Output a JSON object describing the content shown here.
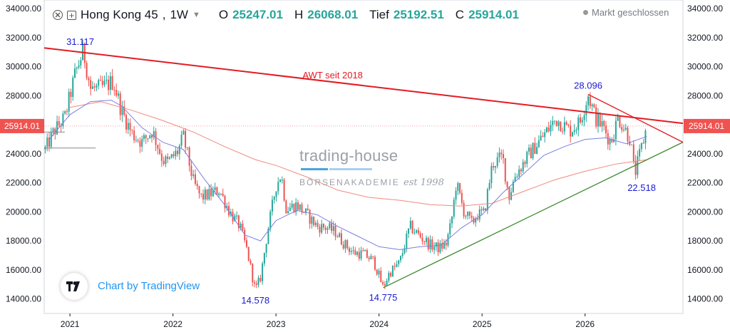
{
  "header": {
    "symbol": "Hong Kong 45",
    "interval": "1W",
    "open_label": "O",
    "open_value": "25247.01",
    "high_label": "H",
    "high_value": "26068.01",
    "low_label": "Tief",
    "low_value": "25192.51",
    "close_label": "C",
    "close_value": "25914.01",
    "status": "Markt geschlossen",
    "icons": [
      "hide-icon",
      "add-compare-icon",
      "chevron-down-icon",
      "status-dot-icon"
    ]
  },
  "watermark": {
    "line1": "trading-house",
    "line2": "BÖRSENAKADEMIE",
    "line3": "est 1998"
  },
  "branding": {
    "logo": "tradingview-logo",
    "text": "Chart by TradingView"
  },
  "colors": {
    "up": "#26a69a",
    "down": "#ef5350",
    "resistance": "#e31b23",
    "support": "#3d8b2f",
    "ma_fast": "#7b7fe0",
    "ma_slow": "#ef8a80",
    "annotation": "#1a1ad6",
    "price_tag": "#ef5350"
  },
  "chart_data": {
    "type": "candlestick",
    "y_ticks": [
      "14000.00",
      "16000.00",
      "18000.00",
      "20000.00",
      "22000.00",
      "24000.00",
      "26000.00",
      "28000.00",
      "30000.00",
      "32000.00",
      "34000.00"
    ],
    "y_tick_values": [
      14000,
      16000,
      18000,
      20000,
      22000,
      24000,
      26000,
      28000,
      30000,
      32000,
      34000
    ],
    "ylim": [
      13000,
      34600
    ],
    "x_ticks": [
      "2021",
      "2022",
      "2023",
      "2024",
      "2025",
      "2026"
    ],
    "x_tick_values": [
      2021.0,
      2022.0,
      2023.0,
      2024.0,
      2025.0,
      2026.0
    ],
    "xlim": [
      2020.75,
      2026.95
    ],
    "current_price": "25914.01",
    "current_price_value": 25914.01,
    "anchors": [
      [
        2020.76,
        24300
      ],
      [
        2020.85,
        25600
      ],
      [
        2020.95,
        26500
      ],
      [
        2021.05,
        29500
      ],
      [
        2021.13,
        31117
      ],
      [
        2021.2,
        28500
      ],
      [
        2021.3,
        28500
      ],
      [
        2021.42,
        29000
      ],
      [
        2021.5,
        27000
      ],
      [
        2021.6,
        25400
      ],
      [
        2021.7,
        24800
      ],
      [
        2021.8,
        25600
      ],
      [
        2021.9,
        23600
      ],
      [
        2021.95,
        23400
      ],
      [
        2022.05,
        24200
      ],
      [
        2022.1,
        25200
      ],
      [
        2022.2,
        22000
      ],
      [
        2022.27,
        21000
      ],
      [
        2022.35,
        21200
      ],
      [
        2022.45,
        21500
      ],
      [
        2022.55,
        20000
      ],
      [
        2022.65,
        19000
      ],
      [
        2022.72,
        17300
      ],
      [
        2022.8,
        14578
      ],
      [
        2022.85,
        15500
      ],
      [
        2022.92,
        18700
      ],
      [
        2023.0,
        21800
      ],
      [
        2023.05,
        22600
      ],
      [
        2023.1,
        20200
      ],
      [
        2023.2,
        20500
      ],
      [
        2023.3,
        19800
      ],
      [
        2023.4,
        19000
      ],
      [
        2023.5,
        18900
      ],
      [
        2023.58,
        18600
      ],
      [
        2023.65,
        17900
      ],
      [
        2023.75,
        17200
      ],
      [
        2023.85,
        17100
      ],
      [
        2023.95,
        16600
      ],
      [
        2024.04,
        14775
      ],
      [
        2024.1,
        15800
      ],
      [
        2024.2,
        16500
      ],
      [
        2024.3,
        19000
      ],
      [
        2024.4,
        18300
      ],
      [
        2024.5,
        17700
      ],
      [
        2024.58,
        17500
      ],
      [
        2024.65,
        17800
      ],
      [
        2024.7,
        19200
      ],
      [
        2024.75,
        22000
      ],
      [
        2024.82,
        20100
      ],
      [
        2024.9,
        19200
      ],
      [
        2024.95,
        19800
      ],
      [
        2025.02,
        19900
      ],
      [
        2025.1,
        23300
      ],
      [
        2025.2,
        23800
      ],
      [
        2025.26,
        21000
      ],
      [
        2025.32,
        22500
      ],
      [
        2025.45,
        23900
      ],
      [
        2025.6,
        25300
      ],
      [
        2025.72,
        26400
      ],
      [
        2025.85,
        25600
      ],
      [
        2025.95,
        26200
      ],
      [
        2026.03,
        28096
      ],
      [
        2026.1,
        26500
      ],
      [
        2026.18,
        25800
      ],
      [
        2026.25,
        24800
      ],
      [
        2026.32,
        26500
      ],
      [
        2026.38,
        25800
      ],
      [
        2026.44,
        25000
      ],
      [
        2026.48,
        22518
      ],
      [
        2026.55,
        24500
      ],
      [
        2026.6,
        25914
      ]
    ],
    "sma_fast": [
      [
        2020.8,
        25000
      ],
      [
        2021.0,
        26700
      ],
      [
        2021.2,
        27600
      ],
      [
        2021.4,
        27700
      ],
      [
        2021.5,
        27300
      ],
      [
        2021.7,
        25800
      ],
      [
        2021.9,
        24800
      ],
      [
        2022.1,
        24300
      ],
      [
        2022.3,
        22300
      ],
      [
        2022.5,
        20500
      ],
      [
        2022.7,
        18400
      ],
      [
        2022.85,
        18000
      ],
      [
        2023.0,
        19400
      ],
      [
        2023.2,
        20100
      ],
      [
        2023.4,
        19800
      ],
      [
        2023.6,
        19000
      ],
      [
        2023.8,
        18300
      ],
      [
        2024.0,
        17600
      ],
      [
        2024.2,
        17400
      ],
      [
        2024.4,
        17600
      ],
      [
        2024.6,
        17700
      ],
      [
        2024.8,
        18900
      ],
      [
        2025.0,
        19800
      ],
      [
        2025.2,
        21300
      ],
      [
        2025.4,
        22600
      ],
      [
        2025.6,
        23900
      ],
      [
        2025.8,
        24500
      ],
      [
        2026.0,
        25000
      ],
      [
        2026.2,
        25100
      ],
      [
        2026.4,
        24700
      ],
      [
        2026.6,
        25200
      ]
    ],
    "sma_slow": [
      [
        2021.0,
        27200
      ],
      [
        2021.3,
        27600
      ],
      [
        2021.6,
        27000
      ],
      [
        2021.9,
        26300
      ],
      [
        2022.2,
        25500
      ],
      [
        2022.5,
        24500
      ],
      [
        2022.8,
        23600
      ],
      [
        2023.0,
        23200
      ],
      [
        2023.3,
        22400
      ],
      [
        2023.6,
        21500
      ],
      [
        2023.9,
        21000
      ],
      [
        2024.2,
        20800
      ],
      [
        2024.5,
        20500
      ],
      [
        2024.8,
        20400
      ],
      [
        2025.1,
        20600
      ],
      [
        2025.4,
        21400
      ],
      [
        2025.7,
        22200
      ],
      [
        2026.0,
        22800
      ],
      [
        2026.3,
        23300
      ],
      [
        2026.6,
        23600
      ]
    ],
    "trendlines": [
      {
        "name": "AWT seit 2018",
        "kind": "resistance",
        "from": [
          2020.75,
          31300
        ],
        "to": [
          2026.95,
          26100
        ]
      },
      {
        "kind": "support",
        "from": [
          2024.04,
          14775
        ],
        "to": [
          2026.95,
          24800
        ]
      },
      {
        "kind": "resistance-short",
        "from": [
          2026.03,
          28096
        ],
        "to": [
          2026.95,
          24800
        ]
      }
    ],
    "side_lines": [
      {
        "from": [
          2020.75,
          24400
        ],
        "to": [
          2021.25,
          24400
        ]
      },
      {
        "from": [
          2020.75,
          25500
        ],
        "to": [
          2020.95,
          25500
        ]
      }
    ],
    "annotations": [
      {
        "text": "31.117",
        "x": 2021.1,
        "y": 31117,
        "pos": "above"
      },
      {
        "text": "14.578",
        "x": 2022.8,
        "y": 14578,
        "pos": "below"
      },
      {
        "text": "14.775",
        "x": 2024.04,
        "y": 14775,
        "pos": "below"
      },
      {
        "text": "28.096",
        "x": 2026.03,
        "y": 28096,
        "pos": "above"
      },
      {
        "text": "22.518",
        "x": 2026.48,
        "y": 22518,
        "pos": "below-right"
      },
      {
        "text": "AWT seit 2018",
        "x": 2023.55,
        "y": 29200,
        "pos": "line-label"
      }
    ]
  }
}
